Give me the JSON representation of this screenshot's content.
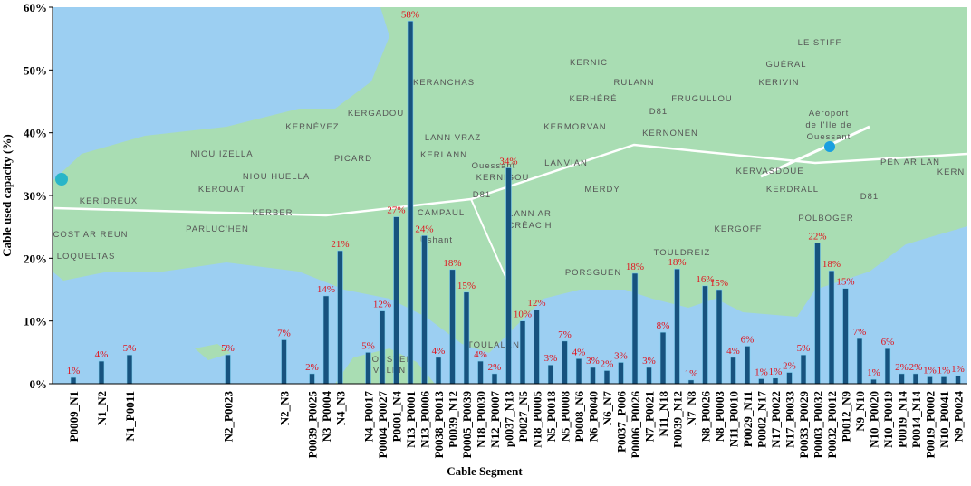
{
  "chart_data": {
    "type": "bar",
    "xlabel": "Cable Segment",
    "ylabel": "Cable used capacity (%)",
    "categories": [
      "P0009_N1",
      null,
      "N1_N2",
      null,
      "N1_P0011",
      null,
      null,
      null,
      null,
      null,
      null,
      "N2_P0023",
      null,
      null,
      null,
      "N2_N3",
      null,
      "P0039_P0025",
      "N3_P0004",
      "N4_N3",
      null,
      "N4_P0017",
      "P0004_P0027",
      "P0001_N4",
      "N13_P0001",
      "N13_P0006",
      "P0038_P0013",
      "P0039_N12",
      "P0005_P0039",
      "N18_P0030",
      "N12_P0007",
      "p0037_N13",
      "P0027_N5",
      "N18_P0005",
      "N5_P0018",
      "N5_P0008",
      "P0008_N6",
      "N6_P0040",
      "N6_N7",
      "P0037_P006",
      "P0006_P0026",
      "N7_P0021",
      "N11_N18",
      "P0039_N12",
      "N7_N8",
      "N8_P0026",
      "N8_P0003",
      "N11_P0010",
      "P0029_N11",
      "P0002_N17",
      "N17_P0022",
      "N17_P0033",
      "P0033_P0029",
      "P0003_P0032",
      "P0032_P0012",
      "P0012_N9",
      "N9_N10",
      "N10_P0020",
      "N10_P0019",
      "P0019_N14",
      "P0014_N14",
      "P0019_P0002",
      "N10_P0041",
      "N9_P0024"
    ],
    "values": [
      1,
      null,
      3.6,
      null,
      4.6,
      null,
      null,
      null,
      null,
      null,
      null,
      4.6,
      null,
      null,
      null,
      7,
      null,
      1.6,
      14,
      21.2,
      null,
      5,
      11.6,
      26.6,
      57.8,
      23.6,
      4.2,
      18.2,
      14.6,
      3.6,
      1.6,
      34.4,
      10,
      11.8,
      3,
      6.8,
      4,
      2.6,
      2.1,
      3.4,
      17.6,
      2.6,
      8.2,
      18.3,
      0.6,
      15.6,
      15,
      4.2,
      6,
      0.8,
      0.9,
      1.8,
      4.6,
      22.4,
      18,
      15.2,
      7.2,
      0.7,
      5.6,
      1.6,
      1.6,
      1.1,
      1.1,
      1.3
    ],
    "value_labels": [
      "1%",
      null,
      "4%",
      null,
      "5%",
      null,
      null,
      null,
      null,
      null,
      null,
      "5%",
      null,
      null,
      null,
      "7%",
      null,
      "2%",
      "14%",
      "21%",
      null,
      "5%",
      "12%",
      "27%",
      "58%",
      "24%",
      "4%",
      "18%",
      "15%",
      "4%",
      "2%",
      "34%",
      "10%",
      "12%",
      "3%",
      "7%",
      "4%",
      "3%",
      "2%",
      "3%",
      "18%",
      "3%",
      "8%",
      "18%",
      "1%",
      "16%",
      "15%",
      "4%",
      "6%",
      "1%",
      "1%",
      "2%",
      "5%",
      "22%",
      "18%",
      "15%",
      "7%",
      "1%",
      "6%",
      "2%",
      "2%",
      "1%",
      "1%",
      "1%"
    ],
    "color": "#17527e",
    "ylim": [
      0,
      60
    ],
    "yticks": [
      {
        "value": 0,
        "label": "0%"
      },
      {
        "value": 10,
        "label": "10%"
      },
      {
        "value": 20,
        "label": "20%"
      },
      {
        "value": 30,
        "label": "30%"
      },
      {
        "value": 40,
        "label": "40%"
      },
      {
        "value": 50,
        "label": "50%"
      },
      {
        "value": 60,
        "label": "60%"
      }
    ],
    "background_map_labels": [
      "LE STIFF",
      "KERNIC",
      "GUÉRAL",
      "RULANN",
      "KERIVIN",
      "KERANCHAS",
      "KERHÉRÉ",
      "FRUGULLOU",
      "D81",
      "Aéroport",
      "de l'Ile de",
      "Ouessant",
      "KERGADOU",
      "KERNÉVEZ",
      "KERMORVAN",
      "KERNONEN",
      "LANN VRAZ",
      "NIOU IZELLA",
      "PICARD",
      "KERLANN",
      "Ouessant",
      "LANVIAN",
      "KERVASDOUÉ",
      "PEN AR LAN",
      "KERN",
      "NIOU HUELLA",
      "KERNIGOU",
      "KEROUAT",
      "MERDY",
      "KERIDREUX",
      "D81",
      "KERBER",
      "KERDRALL",
      "D81",
      "CAMPAUL",
      "POLBOGER",
      "LANN AR",
      "CRÉAC'H",
      "COST AR REUN",
      "PARLUC'HEN",
      "KERGOFF",
      "Ushant",
      "LOQUELTAS",
      "TOULDREIZ",
      "PORSGUEN",
      "TOULALAN",
      "FOUSTEN",
      "VELEN"
    ]
  }
}
